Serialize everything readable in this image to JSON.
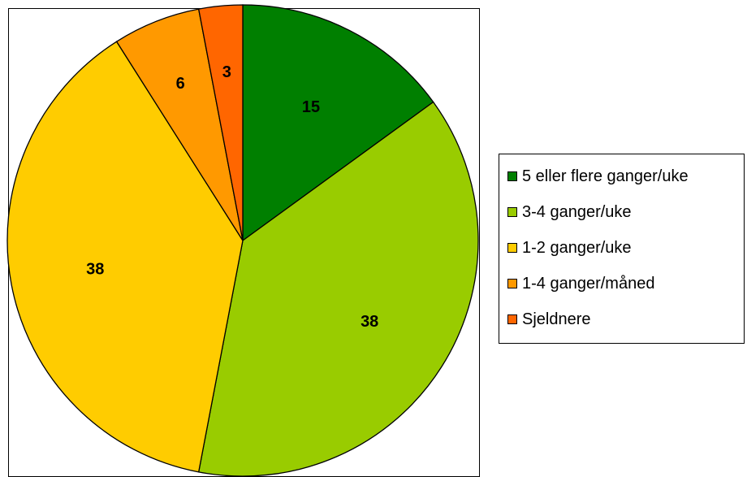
{
  "chart_data": {
    "type": "pie",
    "categories": [
      "5 eller flere ganger/uke",
      "3-4 ganger/uke",
      "1-2 ganger/uke",
      "1-4 ganger/måned",
      "Sjeldnere"
    ],
    "values": [
      15,
      38,
      38,
      6,
      3
    ],
    "colors": [
      "#007f00",
      "#99cc00",
      "#ffcc00",
      "#ff9900",
      "#ff6600"
    ],
    "labels": [
      "15",
      "38",
      "38",
      "6",
      "3"
    ],
    "legend_position": "right"
  }
}
